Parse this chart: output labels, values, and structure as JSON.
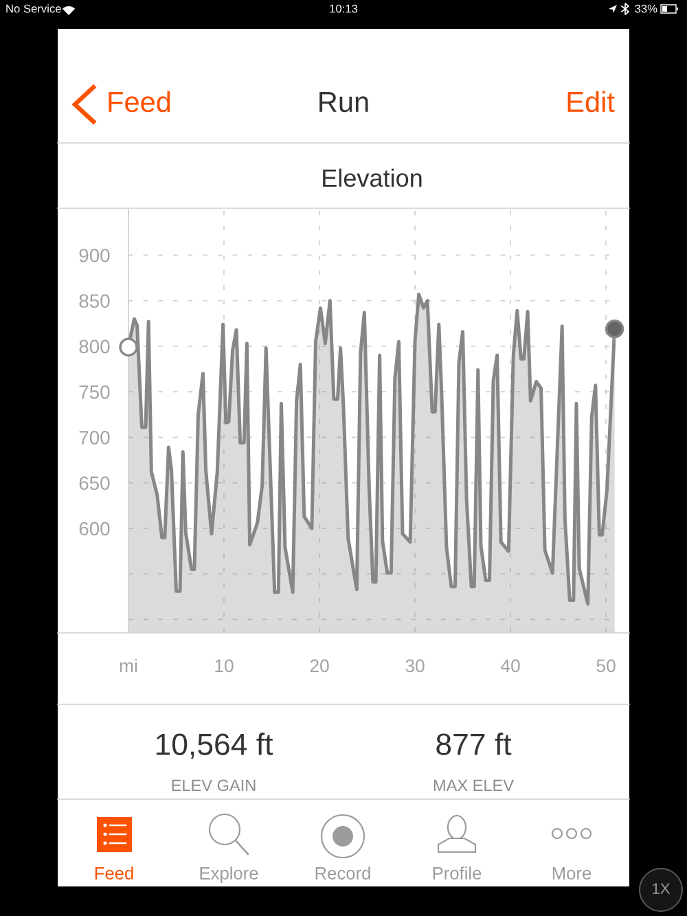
{
  "chart_data": {
    "type": "area",
    "title": "Elevation",
    "annotations": [
      "No Service",
      "10:13",
      "33%",
      "Feed",
      "Run",
      "Edit",
      "10,564 ft",
      "ELEV GAIN",
      "877 ft",
      "MAX ELEV",
      "Feed",
      "Explore",
      "Record",
      "Profile",
      "More",
      "1X"
    ],
    "xlim": [
      0,
      51
    ],
    "xticks": [
      {
        "value": 0,
        "label": "mi"
      },
      10,
      20,
      30,
      40,
      50
    ],
    "ylim": [
      486,
      950
    ],
    "yticks": [
      {
        "value": 500,
        "label": null
      },
      {
        "value": 550,
        "label": null
      },
      600,
      650,
      700,
      750,
      800,
      850,
      900
    ],
    "grid": true,
    "series": [
      {
        "color": "#878787",
        "x": [
          0,
          0.6,
          0.9,
          1.4,
          1.8,
          2.1,
          2.4,
          3.0,
          3.5,
          3.8,
          4.2,
          4.5,
          5.0,
          5.4,
          5.7,
          6.0,
          6.6,
          6.9,
          7.3,
          7.8,
          8.1,
          8.7,
          9.3,
          9.9,
          10.2,
          10.5,
          10.9,
          11.3,
          11.7,
          12.1,
          12.4,
          12.7,
          13.5,
          14.0,
          14.4,
          15.3,
          15.7,
          16.0,
          16.4,
          17.2,
          17.6,
          18.0,
          18.4,
          19.2,
          19.6,
          20.1,
          20.6,
          21.1,
          21.5,
          21.9,
          22.2,
          22.5,
          23.0,
          23.9,
          24.3,
          24.7,
          25.2,
          25.6,
          25.9,
          26.3,
          26.6,
          27.1,
          27.5,
          27.9,
          28.3,
          28.7,
          29.5,
          30.0,
          30.4,
          30.9,
          31.3,
          31.8,
          32.1,
          32.5,
          32.8,
          33.3,
          33.8,
          34.2,
          34.6,
          35.0,
          35.4,
          35.9,
          36.2,
          36.6,
          36.9,
          37.4,
          37.8,
          38.2,
          38.6,
          39.0,
          39.8,
          40.3,
          40.7,
          41.1,
          41.4,
          41.8,
          42.1,
          42.7,
          43.2,
          43.6,
          44.4,
          45.4,
          45.7,
          46.2,
          46.6,
          46.9,
          47.2,
          48.1,
          48.5,
          48.9,
          49.3,
          49.6,
          50.1,
          50.9
        ],
        "values": [
          799,
          830,
          823,
          711,
          711,
          827,
          662,
          637,
          590,
          590,
          689,
          664,
          531,
          531,
          684,
          595,
          555,
          555,
          725,
          770,
          664,
          594,
          662,
          824,
          716,
          717,
          795,
          818,
          694,
          694,
          803,
          582,
          606,
          647,
          798,
          530,
          530,
          737,
          579,
          530,
          740,
          780,
          613,
          600,
          805,
          842,
          803,
          850,
          742,
          742,
          798,
          737,
          589,
          533,
          793,
          837,
          644,
          541,
          541,
          790,
          586,
          551,
          551,
          765,
          805,
          594,
          585,
          806,
          857,
          842,
          850,
          728,
          728,
          824,
          745,
          579,
          536,
          536,
          782,
          816,
          632,
          536,
          536,
          774,
          581,
          543,
          543,
          762,
          790,
          585,
          575,
          790,
          839,
          786,
          786,
          838,
          740,
          761,
          754,
          576,
          551,
          822,
          611,
          521,
          521,
          737,
          556,
          517,
          722,
          757,
          593,
          593,
          642,
          819
        ]
      },
      {
        "type": "scatter",
        "color": "#ffffff",
        "marker": "circle",
        "x": [
          0
        ],
        "values": [
          799
        ]
      },
      {
        "type": "scatter",
        "color": "#666666",
        "marker": "circle",
        "x": [
          50.9
        ],
        "values": [
          819
        ]
      }
    ]
  }
}
